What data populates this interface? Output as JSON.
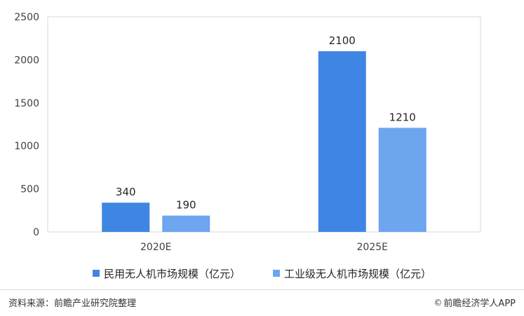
{
  "chart_data": {
    "type": "bar",
    "categories": [
      "2020E",
      "2025E"
    ],
    "series": [
      {
        "name": "民用无人机市场规模（亿元）",
        "values": [
          340,
          2100
        ],
        "color": "#3f86e4"
      },
      {
        "name": "工业级无人机市场规模（亿元）",
        "values": [
          190,
          1210
        ],
        "color": "#6da5ef"
      }
    ],
    "yticks": [
      0,
      500,
      1000,
      1500,
      2000,
      2500
    ],
    "ylim": [
      0,
      2500
    ],
    "grid": false,
    "legend_position": "bottom"
  },
  "footer": {
    "source": "资料来源：前瞻产业研究院整理",
    "brand": "前瞻经济学人APP"
  },
  "icons": {
    "brand_icon": "copyright-icon"
  }
}
